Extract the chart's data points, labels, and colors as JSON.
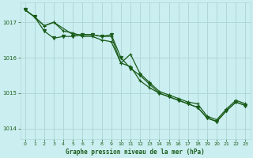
{
  "title": "Graphe pression niveau de la mer (hPa)",
  "background_color": "#cbeef0",
  "grid_color": "#b0d8d8",
  "line_color": "#1a5c1a",
  "text_color": "#1a5c1a",
  "xlim": [
    -0.5,
    23.5
  ],
  "ylim": [
    1013.7,
    1017.55
  ],
  "yticks": [
    1014,
    1015,
    1016,
    1017
  ],
  "xticks": [
    0,
    1,
    2,
    3,
    4,
    5,
    6,
    7,
    8,
    9,
    10,
    11,
    12,
    13,
    14,
    15,
    16,
    17,
    18,
    19,
    20,
    21,
    22,
    23
  ],
  "series": [
    {
      "x": [
        0,
        1,
        2,
        3,
        4,
        5,
        6,
        7,
        8,
        9,
        10,
        11,
        12,
        13,
        14,
        15,
        16,
        17,
        18,
        19,
        20,
        21,
        22,
        23
      ],
      "y": [
        1017.35,
        1017.15,
        1016.9,
        1017.0,
        1016.75,
        1016.7,
        1016.6,
        1016.6,
        1016.5,
        1016.45,
        1015.85,
        1015.75,
        1015.35,
        1015.15,
        1015.0,
        1014.9,
        1014.8,
        1014.7,
        1014.6,
        1014.3,
        1014.2,
        1014.5,
        1014.75,
        1014.65
      ],
      "marker": "+",
      "lw": 0.9,
      "ms": 3.5
    },
    {
      "x": [
        0,
        1,
        2,
        3,
        4,
        5,
        6,
        7,
        8,
        9,
        10,
        11,
        12,
        13,
        14,
        15,
        16,
        17,
        18,
        19,
        20,
        21,
        22,
        23
      ],
      "y": [
        1017.35,
        1017.15,
        1016.75,
        1016.55,
        1016.6,
        1016.6,
        1016.65,
        1016.65,
        1016.6,
        1016.65,
        1016.0,
        1015.7,
        1015.5,
        1015.25,
        1015.0,
        1014.9,
        1014.8,
        1014.7,
        1014.6,
        1014.3,
        1014.2,
        1014.5,
        1014.75,
        1014.65
      ],
      "marker": "v",
      "lw": 0.9,
      "ms": 3.0
    },
    {
      "x": [
        0,
        1,
        2,
        3,
        5,
        6,
        7,
        8,
        9,
        10,
        11,
        12,
        13,
        14,
        15,
        16,
        17,
        18,
        19,
        20,
        21,
        22,
        23
      ],
      "y": [
        1017.35,
        1017.15,
        1016.9,
        1017.0,
        1016.65,
        1016.65,
        1016.65,
        1016.6,
        1016.6,
        1015.85,
        1016.1,
        1015.55,
        1015.3,
        1015.05,
        1014.95,
        1014.85,
        1014.75,
        1014.7,
        1014.35,
        1014.25,
        1014.55,
        1014.8,
        1014.7
      ],
      "marker": "+",
      "lw": 0.9,
      "ms": 3.5
    }
  ]
}
